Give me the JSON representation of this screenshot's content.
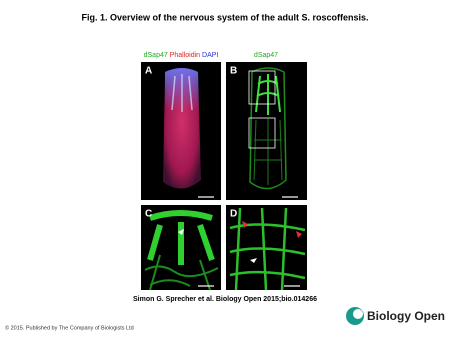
{
  "title": "Fig. 1. Overview of the nervous system of the adult S. roscoffensis.",
  "panels": [
    {
      "label": "A",
      "stains": [
        "dSap47",
        "Phalloidin",
        "DAPI"
      ]
    },
    {
      "label": "B",
      "stains": [
        "dSap47"
      ]
    },
    {
      "label": "C"
    },
    {
      "label": "D"
    }
  ],
  "citation": "Simon G. Sprecher et al. Biology Open 2015;bio.014266",
  "footer": "© 2015. Published by The Company of Biologists Ltd",
  "logo": "Biology Open"
}
